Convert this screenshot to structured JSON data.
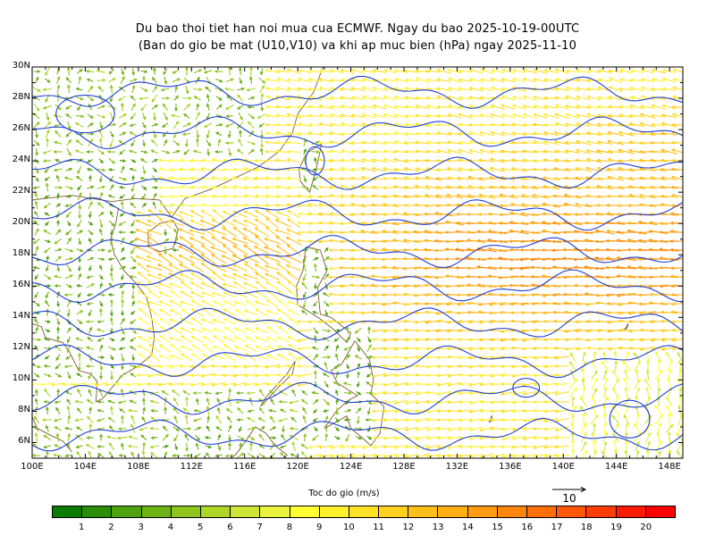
{
  "title_line1": "Du bao thoi tiet han noi mua cua ECMWF. Ngay du bao 2025-10-19-00UTC",
  "title_line2": "(Ban do gio be mat (U10,V10) va khi ap muc bien (hPa) ngay 2025-11-10",
  "colorbar_title": "Toc do gio (m/s)",
  "reference_vector_label": "10",
  "chart_data": {
    "type": "vector-field map",
    "lat_labels": [
      "30N",
      "28N",
      "26N",
      "24N",
      "22N",
      "20N",
      "18N",
      "16N",
      "14N",
      "12N",
      "10N",
      "8N",
      "6N"
    ],
    "lat_values": [
      30,
      28,
      26,
      24,
      22,
      20,
      18,
      16,
      14,
      12,
      10,
      8,
      6
    ],
    "lon_labels": [
      "100E",
      "104E",
      "108E",
      "112E",
      "116E",
      "120E",
      "124E",
      "128E",
      "132E",
      "136E",
      "140E",
      "144E",
      "148E"
    ],
    "lon_values": [
      100,
      104,
      108,
      112,
      116,
      120,
      124,
      128,
      132,
      136,
      140,
      144,
      148
    ],
    "lon_range": [
      100,
      149
    ],
    "lat_range": [
      5,
      30
    ],
    "wind_speed_units": "m/s",
    "reference_vector_speed": 10,
    "colorbar_labels": [
      "1",
      "2",
      "3",
      "4",
      "5",
      "6",
      "7",
      "8",
      "9",
      "10",
      "11",
      "12",
      "13",
      "14",
      "15",
      "16",
      "17",
      "18",
      "19",
      "20"
    ],
    "colorbar_colors": [
      "#0a7d00",
      "#2a8f06",
      "#4ea30e",
      "#6db315",
      "#8ec51e",
      "#aed52a",
      "#cde536",
      "#e9f23c",
      "#ffff33",
      "#fff02c",
      "#ffe126",
      "#ffd01f",
      "#ffbf1a",
      "#ffae16",
      "#ff9b12",
      "#ff860e",
      "#ff700b",
      "#ff5808",
      "#ff3c05",
      "#ff1a02",
      "#ff0000"
    ],
    "land_outline_color": "#7a5a2e",
    "isobar_color": "#1f3fd6"
  }
}
